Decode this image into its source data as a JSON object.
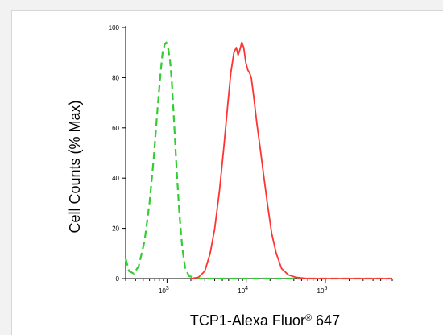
{
  "chart_data": {
    "type": "line",
    "xlabel": "TCP1-Alexa Fluor",
    "xlabel_sup": "®",
    "xlabel_suffix": " 647",
    "ylabel": "Cell Counts (% Max)",
    "xscale": "log",
    "xlim": [
      300,
      700000
    ],
    "ylim": [
      0,
      100
    ],
    "yticks": [
      0,
      20,
      40,
      60,
      80,
      100
    ],
    "xticks": [
      {
        "base": "10",
        "exp": "3",
        "value": 1000
      },
      {
        "base": "10",
        "exp": "4",
        "value": 10000
      },
      {
        "base": "10",
        "exp": "5",
        "value": 100000
      }
    ],
    "grid": false,
    "series": [
      {
        "color": "#33cc33",
        "dash": "dashed",
        "points": [
          [
            300,
            8
          ],
          [
            330,
            3
          ],
          [
            380,
            2
          ],
          [
            440,
            5
          ],
          [
            520,
            15
          ],
          [
            600,
            30
          ],
          [
            680,
            48
          ],
          [
            760,
            68
          ],
          [
            830,
            82
          ],
          [
            880,
            90
          ],
          [
            930,
            93
          ],
          [
            980,
            94
          ],
          [
            1030,
            92
          ],
          [
            1090,
            87
          ],
          [
            1150,
            78
          ],
          [
            1230,
            62
          ],
          [
            1320,
            44
          ],
          [
            1430,
            26
          ],
          [
            1560,
            12
          ],
          [
            1700,
            4
          ],
          [
            1900,
            1
          ],
          [
            2400,
            0
          ],
          [
            5000,
            0
          ],
          [
            20000,
            0
          ],
          [
            100000,
            0
          ],
          [
            700000,
            0
          ]
        ]
      },
      {
        "color": "#ff3333",
        "dash": "solid",
        "points": [
          [
            2000,
            0
          ],
          [
            2500,
            0.5
          ],
          [
            3000,
            3
          ],
          [
            3500,
            10
          ],
          [
            4000,
            20
          ],
          [
            4600,
            35
          ],
          [
            5200,
            52
          ],
          [
            5800,
            68
          ],
          [
            6400,
            82
          ],
          [
            7000,
            90
          ],
          [
            7500,
            92
          ],
          [
            7900,
            89
          ],
          [
            8300,
            91
          ],
          [
            8800,
            94
          ],
          [
            9300,
            92
          ],
          [
            9900,
            86
          ],
          [
            10500,
            83
          ],
          [
            11000,
            82
          ],
          [
            11600,
            80
          ],
          [
            12500,
            72
          ],
          [
            13600,
            62
          ],
          [
            15000,
            52
          ],
          [
            16500,
            42
          ],
          [
            18500,
            30
          ],
          [
            21000,
            18
          ],
          [
            24000,
            10
          ],
          [
            28000,
            4
          ],
          [
            34000,
            1.5
          ],
          [
            42000,
            0.5
          ],
          [
            60000,
            0
          ],
          [
            700000,
            0
          ]
        ]
      }
    ]
  }
}
